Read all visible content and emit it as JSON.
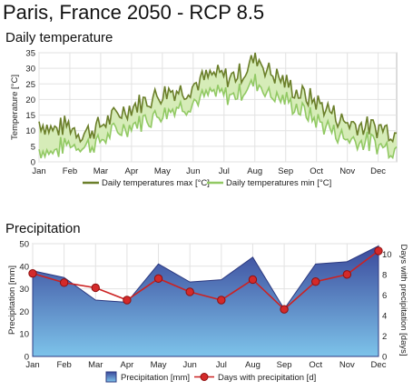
{
  "page": {
    "title": "Paris, France  2050 - RCP 8.5"
  },
  "chart_data": [
    {
      "type": "line",
      "title": "Daily temperature",
      "xlabel": "",
      "ylabel": "Temperature [°C]",
      "ylim": [
        0,
        35
      ],
      "yticks": [
        0,
        5,
        10,
        15,
        20,
        25,
        30,
        35
      ],
      "x_tick_labels": [
        "Jan",
        "Feb",
        "Mar",
        "Apr",
        "May",
        "Jun",
        "Jul",
        "Aug",
        "Sep",
        "Oct",
        "Nov",
        "Dec"
      ],
      "grid": true,
      "legend_position": "bottom",
      "colors": {
        "max": "#6b7f2a",
        "min": "#92c964",
        "fill": "#d6ecb8"
      },
      "series": [
        {
          "name": "Daily temperatures max [°C]",
          "x": [
            1,
            15,
            30,
            45,
            60,
            75,
            90,
            105,
            120,
            135,
            150,
            165,
            180,
            195,
            210,
            222,
            235,
            250,
            265,
            280,
            295,
            310,
            325,
            340,
            352,
            365
          ],
          "values": [
            13,
            10,
            12,
            9,
            11,
            14,
            17,
            19,
            21,
            23,
            23,
            26,
            28,
            27,
            29,
            34,
            29,
            26,
            22,
            20,
            17,
            13,
            12,
            11,
            11,
            9
          ]
        },
        {
          "name": "Daily temperatures min [°C]",
          "x": [
            1,
            15,
            30,
            45,
            60,
            75,
            90,
            105,
            120,
            135,
            150,
            165,
            180,
            195,
            210,
            222,
            235,
            250,
            265,
            280,
            295,
            310,
            325,
            340,
            352,
            365
          ],
          "values": [
            4,
            3,
            6,
            5,
            6,
            9,
            11,
            13,
            15,
            17,
            18,
            20,
            22,
            21,
            23,
            26,
            22,
            20,
            17,
            14,
            11,
            8,
            7,
            6,
            5,
            4
          ]
        }
      ]
    },
    {
      "type": "bar",
      "title": "Precipitation",
      "categories": [
        "Jan",
        "Feb",
        "Mar",
        "Apr",
        "May",
        "Jun",
        "Jul",
        "Aug",
        "Sep",
        "Oct",
        "Nov",
        "Dec"
      ],
      "ylabel": "Precipitation [mm]",
      "y2label": "Days with precipitation [days]",
      "ylim": [
        0,
        50
      ],
      "y2lim": [
        0,
        11
      ],
      "yticks": [
        0,
        10,
        20,
        30,
        40,
        50
      ],
      "y2ticks": [
        0,
        2,
        4,
        6,
        8,
        10
      ],
      "grid": true,
      "legend_position": "bottom",
      "colors": {
        "area_top": "#3b4a9c",
        "area_bottom": "#7dc3ea",
        "line": "#cc2222"
      },
      "series": [
        {
          "name": "Precipitation [mm]",
          "kind": "area",
          "values": [
            38,
            35,
            25,
            24,
            41,
            33,
            34,
            44,
            21,
            41,
            42,
            49
          ]
        },
        {
          "name": "Days with precipitation [d]",
          "kind": "line",
          "axis": "right",
          "values": [
            8.1,
            7.2,
            6.7,
            5.5,
            7.6,
            6.3,
            5.5,
            7.5,
            4.6,
            7.3,
            8.0,
            10.3
          ]
        }
      ]
    }
  ]
}
